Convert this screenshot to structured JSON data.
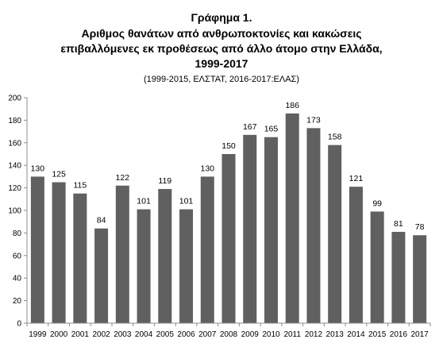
{
  "chart_data": {
    "type": "bar",
    "title": "Γράφημα 1.",
    "subtitle_lines": [
      "Αριθμος θανάτων από ανθρωποκτονίες και κακώσεις",
      "επιβαλλόμενες εκ προθέσεως από άλλο άτομο στην Ελλάδα,",
      "1999-2017"
    ],
    "note": "(1999-2015, ΕΛΣΤΑΤ, 2016-2017:ΕΛΑΣ)",
    "categories": [
      "1999",
      "2000",
      "2001",
      "2002",
      "2003",
      "2004",
      "2005",
      "2006",
      "2007",
      "2008",
      "2009",
      "2010",
      "2011",
      "2012",
      "2013",
      "2014",
      "2015",
      "2016",
      "2017"
    ],
    "values": [
      130,
      125,
      115,
      84,
      122,
      101,
      119,
      101,
      130,
      150,
      167,
      165,
      186,
      173,
      158,
      121,
      99,
      81,
      78
    ],
    "data_labels": [
      "130",
      "125",
      "115",
      "84",
      "122",
      "101",
      "119",
      "101",
      "130",
      "150",
      "167",
      "165",
      "186",
      "173",
      "158",
      "121",
      "99",
      "81",
      "78"
    ],
    "yticks": [
      "0",
      "20",
      "40",
      "60",
      "80",
      "100",
      "120",
      "140",
      "160",
      "180",
      "200"
    ],
    "ylim": [
      0,
      200
    ],
    "xlabel": "",
    "ylabel": "",
    "grid": false,
    "legend": "none",
    "bar_color": "#606060"
  }
}
